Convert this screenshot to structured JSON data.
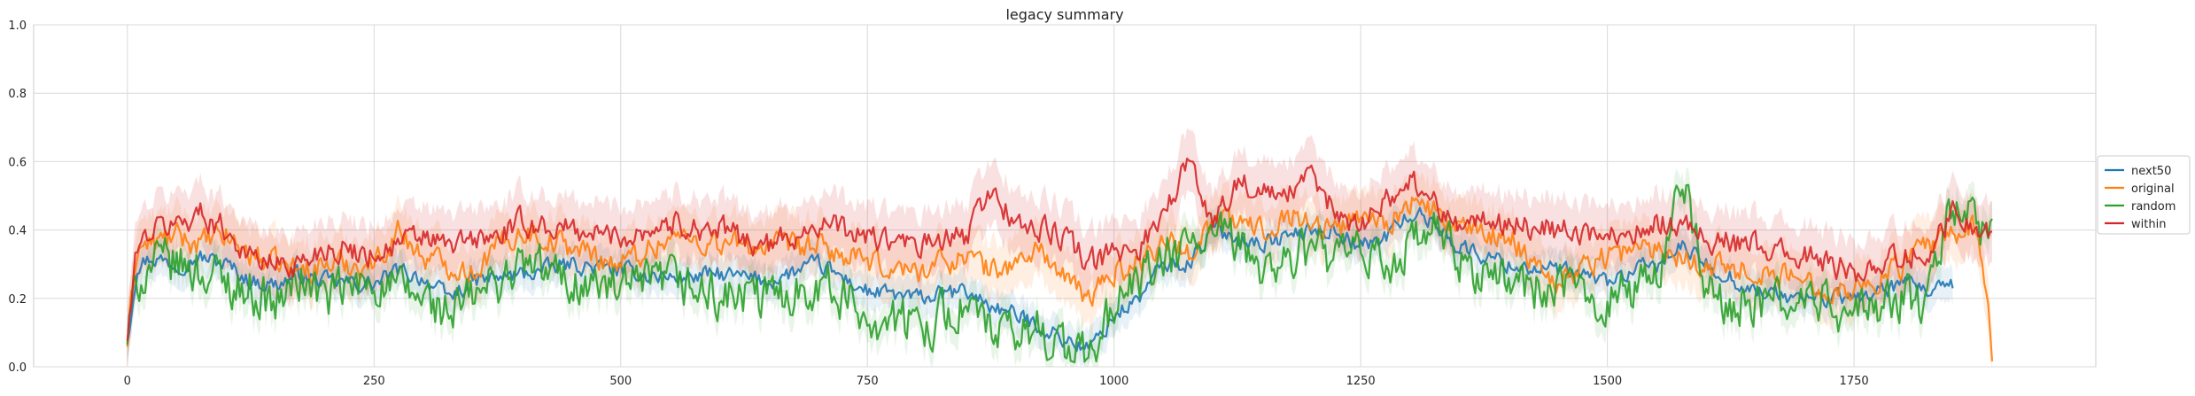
{
  "chart_data": {
    "type": "line",
    "title": "legacy summary",
    "xlabel": "",
    "ylabel": "",
    "xlim": [
      -95,
      1995
    ],
    "ylim": [
      0,
      1.0
    ],
    "x_ticks": [
      0,
      250,
      500,
      750,
      1000,
      1250,
      1500,
      1750
    ],
    "y_ticks": [
      0.0,
      0.2,
      0.4,
      0.6,
      0.8,
      1.0
    ],
    "y_tick_labels": [
      "0.0",
      "0.2",
      "0.4",
      "0.6",
      "0.8",
      "1.0"
    ],
    "grid": true,
    "legend_placement": "right",
    "bands": "confidence interval shading around each series",
    "x": [
      0,
      10,
      25,
      50,
      75,
      100,
      125,
      150,
      175,
      200,
      250,
      275,
      300,
      325,
      350,
      375,
      400,
      450,
      500,
      550,
      600,
      650,
      700,
      750,
      800,
      850,
      875,
      900,
      925,
      950,
      975,
      1000,
      1025,
      1050,
      1075,
      1100,
      1125,
      1150,
      1175,
      1200,
      1225,
      1250,
      1275,
      1300,
      1325,
      1350,
      1400,
      1450,
      1500,
      1550,
      1575,
      1600,
      1650,
      1700,
      1750,
      1800,
      1825,
      1850,
      1875,
      1890
    ],
    "series": [
      {
        "name": "next50",
        "color": "#1f77b4",
        "values": [
          0.08,
          0.3,
          0.32,
          0.3,
          0.32,
          0.3,
          0.25,
          0.24,
          0.27,
          0.25,
          0.24,
          0.28,
          0.26,
          0.2,
          0.25,
          0.26,
          0.27,
          0.3,
          0.28,
          0.26,
          0.27,
          0.25,
          0.3,
          0.22,
          0.2,
          0.22,
          0.18,
          0.15,
          0.12,
          0.08,
          0.05,
          0.15,
          0.2,
          0.3,
          0.3,
          0.4,
          0.38,
          0.36,
          0.38,
          0.4,
          0.4,
          0.35,
          0.38,
          0.45,
          0.42,
          0.35,
          0.3,
          0.28,
          0.25,
          0.3,
          0.35,
          0.3,
          0.22,
          0.2,
          0.2,
          0.24,
          0.22,
          0.23,
          null,
          null
        ]
      },
      {
        "name": "original",
        "color": "#ff7f0e",
        "values": [
          0.07,
          0.35,
          0.36,
          0.38,
          0.36,
          0.38,
          0.33,
          0.3,
          0.28,
          0.3,
          0.3,
          0.4,
          0.32,
          0.3,
          0.28,
          0.35,
          0.4,
          0.35,
          0.3,
          0.38,
          0.36,
          0.35,
          0.35,
          0.3,
          0.28,
          0.33,
          0.28,
          0.3,
          0.35,
          0.25,
          0.2,
          0.28,
          0.3,
          0.38,
          0.33,
          0.43,
          0.42,
          0.4,
          0.45,
          0.42,
          0.4,
          0.45,
          0.42,
          0.48,
          0.45,
          0.4,
          0.38,
          0.25,
          0.33,
          0.35,
          0.33,
          0.3,
          0.28,
          0.25,
          0.22,
          0.3,
          0.35,
          0.38,
          0.42,
          0.04
        ]
      },
      {
        "name": "random",
        "color": "#2ca02c",
        "values": [
          0.08,
          0.25,
          0.3,
          0.3,
          0.28,
          0.25,
          0.22,
          0.18,
          0.26,
          0.2,
          0.25,
          0.22,
          0.2,
          0.15,
          0.2,
          0.25,
          0.3,
          0.25,
          0.22,
          0.25,
          0.2,
          0.2,
          0.25,
          0.15,
          0.12,
          0.18,
          0.1,
          0.08,
          0.12,
          0.05,
          0.02,
          0.18,
          0.25,
          0.3,
          0.35,
          0.38,
          0.35,
          0.3,
          0.3,
          0.35,
          0.3,
          0.33,
          0.3,
          0.35,
          0.4,
          0.3,
          0.25,
          0.22,
          0.2,
          0.25,
          0.58,
          0.2,
          0.18,
          0.2,
          0.15,
          0.2,
          0.18,
          0.5,
          0.4,
          0.38
        ]
      },
      {
        "name": "within",
        "color": "#d62728",
        "values": [
          0.08,
          0.35,
          0.4,
          0.42,
          0.45,
          0.4,
          0.32,
          0.3,
          0.3,
          0.35,
          0.33,
          0.36,
          0.38,
          0.35,
          0.37,
          0.38,
          0.42,
          0.4,
          0.38,
          0.42,
          0.4,
          0.35,
          0.42,
          0.38,
          0.35,
          0.38,
          0.52,
          0.42,
          0.4,
          0.38,
          0.3,
          0.33,
          0.35,
          0.45,
          0.6,
          0.42,
          0.55,
          0.5,
          0.5,
          0.55,
          0.45,
          0.42,
          0.48,
          0.55,
          0.48,
          0.42,
          0.42,
          0.4,
          0.38,
          0.42,
          0.42,
          0.38,
          0.35,
          0.32,
          0.28,
          0.32,
          0.35,
          0.45,
          0.4,
          0.38
        ]
      }
    ]
  }
}
